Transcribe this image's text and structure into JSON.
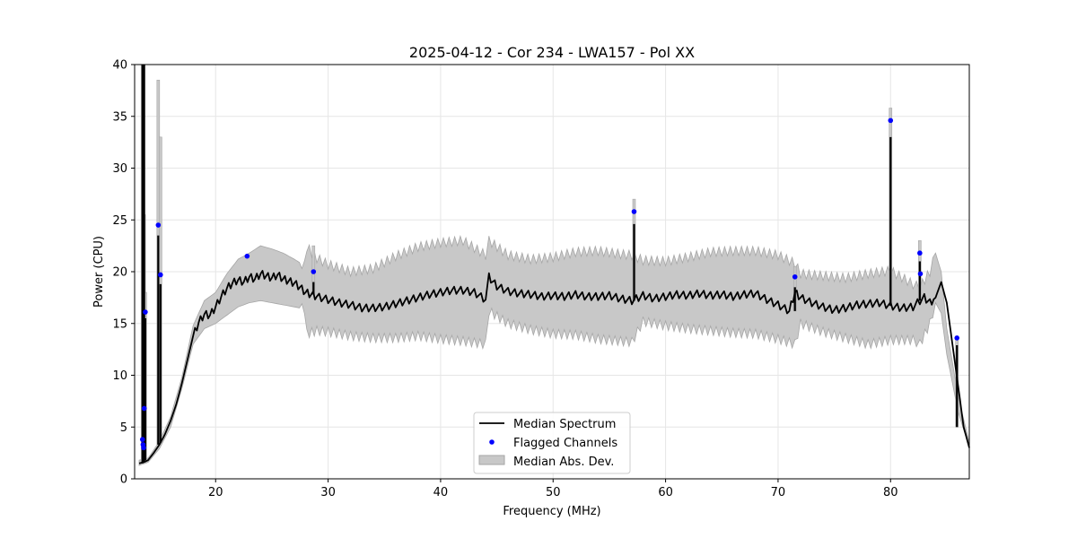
{
  "chart_data": {
    "type": "line",
    "title": "2025-04-12 - Cor 234 - LWA157 - Pol XX",
    "xlabel": "Frequency (MHz)",
    "ylabel": "Power (CPU)",
    "xlim": [
      12.8,
      87.0
    ],
    "ylim": [
      0,
      40
    ],
    "xticks": [
      20,
      30,
      40,
      50,
      60,
      70,
      80
    ],
    "yticks": [
      0,
      5,
      10,
      15,
      20,
      25,
      30,
      35,
      40
    ],
    "grid": true,
    "legend_position": "bottom-center",
    "colors": {
      "median": "#000000",
      "flagged": "#0000ff",
      "band_fill": "#c8c8c8",
      "band_edge": "#a6a6a6",
      "grid": "#e6e6e6"
    },
    "series": [
      {
        "name": "Median Spectrum",
        "kind": "line",
        "x": [
          13.2,
          13.6,
          14.0,
          14.5,
          15.0,
          15.5,
          16.0,
          16.5,
          17.0,
          17.5,
          18.0,
          18.5,
          19.0,
          19.5,
          20.0,
          20.5,
          21.0,
          21.5,
          22.0,
          22.5,
          23.0,
          23.5,
          24.0,
          24.5,
          25.0,
          25.5,
          26.0,
          26.5,
          27.0,
          27.5,
          28.0,
          28.5,
          29.0,
          30.0,
          31.0,
          32.0,
          33.0,
          34.0,
          35.0,
          36.0,
          37.0,
          38.0,
          39.0,
          40.0,
          41.0,
          42.0,
          43.0,
          44.0,
          44.3,
          45.0,
          46.0,
          47.0,
          48.0,
          49.0,
          50.0,
          51.0,
          52.0,
          53.0,
          54.0,
          55.0,
          56.0,
          57.0,
          58.0,
          59.0,
          60.0,
          61.0,
          62.0,
          63.0,
          64.0,
          65.0,
          66.0,
          67.0,
          68.0,
          69.0,
          70.0,
          71.0,
          71.5,
          72.0,
          73.0,
          74.0,
          75.0,
          76.0,
          77.0,
          78.0,
          79.0,
          80.0,
          81.0,
          82.0,
          82.6,
          83.0,
          83.5,
          84.0,
          84.5,
          85.0,
          85.5,
          86.0,
          86.5,
          87.0
        ],
        "y": [
          1.5,
          1.6,
          1.8,
          2.5,
          3.3,
          4.3,
          5.6,
          7.2,
          9.2,
          11.5,
          13.8,
          15.1,
          15.9,
          15.8,
          16.6,
          17.6,
          18.4,
          18.9,
          19.2,
          19.0,
          19.5,
          19.3,
          19.8,
          19.6,
          19.4,
          19.7,
          19.3,
          19.1,
          18.9,
          18.5,
          18.0,
          17.8,
          17.6,
          17.3,
          17.0,
          16.8,
          16.5,
          16.5,
          16.6,
          16.9,
          17.2,
          17.5,
          17.8,
          18.0,
          18.2,
          18.2,
          18.0,
          17.3,
          19.5,
          18.6,
          18.1,
          17.9,
          17.8,
          17.6,
          17.7,
          17.6,
          17.8,
          17.6,
          17.6,
          17.7,
          17.4,
          17.2,
          17.7,
          17.4,
          17.6,
          17.8,
          17.7,
          17.9,
          17.7,
          17.8,
          17.6,
          17.8,
          17.9,
          17.3,
          16.8,
          16.2,
          18.0,
          17.5,
          17.0,
          16.6,
          16.3,
          16.5,
          16.8,
          16.9,
          17.0,
          16.7,
          16.5,
          16.6,
          17.2,
          17.5,
          17.0,
          17.5,
          19.0,
          17.0,
          13.0,
          9.0,
          5.0,
          3.0
        ]
      },
      {
        "name": "Median Abs. Dev.",
        "kind": "band",
        "x": [
          13.2,
          14.0,
          15.0,
          16.0,
          17.0,
          18.0,
          19.0,
          20.0,
          21.0,
          22.0,
          23.0,
          24.0,
          25.0,
          26.0,
          27.0,
          27.9,
          28.1,
          29.0,
          30.0,
          32.0,
          34.0,
          36.0,
          38.0,
          40.0,
          42.0,
          44.0,
          44.3,
          46.0,
          48.0,
          50.0,
          52.0,
          54.0,
          56.0,
          57.0,
          58.0,
          60.0,
          62.0,
          64.0,
          66.0,
          68.0,
          70.0,
          71.5,
          72.0,
          74.0,
          76.0,
          78.0,
          80.0,
          82.0,
          82.6,
          83.5,
          84.0,
          84.5,
          85.0,
          86.0,
          87.0
        ],
        "lower": [
          1.3,
          1.6,
          2.9,
          5.0,
          8.7,
          13.0,
          14.5,
          15.0,
          15.8,
          16.6,
          17.0,
          17.2,
          17.0,
          16.8,
          16.6,
          16.4,
          14.0,
          14.3,
          14.2,
          13.8,
          13.6,
          13.6,
          13.8,
          13.5,
          13.3,
          13.0,
          16.2,
          15.0,
          14.4,
          14.0,
          13.9,
          13.5,
          13.3,
          13.2,
          15.2,
          14.8,
          14.5,
          14.3,
          14.1,
          14.0,
          13.5,
          13.0,
          15.0,
          14.2,
          13.6,
          13.0,
          13.4,
          13.4,
          13.0,
          15.0,
          17.0,
          16.0,
          12.0,
          6.5,
          3.0
        ],
        "upper": [
          1.8,
          2.0,
          3.6,
          6.0,
          9.8,
          14.8,
          17.2,
          18.0,
          19.8,
          21.2,
          21.8,
          22.5,
          22.2,
          21.8,
          21.2,
          20.6,
          22.4,
          21.3,
          20.7,
          20.0,
          20.3,
          21.5,
          22.4,
          22.8,
          23.0,
          21.6,
          23.0,
          21.6,
          21.2,
          21.4,
          21.9,
          22.0,
          21.7,
          21.6,
          21.1,
          21.0,
          21.4,
          21.9,
          22.0,
          22.0,
          21.6,
          20.8,
          19.8,
          19.6,
          19.4,
          19.8,
          20.1,
          18.8,
          18.5,
          20.0,
          21.8,
          20.0,
          14.5,
          8.0,
          3.5
        ]
      },
      {
        "name": "Flagged Channels",
        "kind": "scatter",
        "x": [
          13.5,
          13.55,
          13.6,
          13.65,
          13.75,
          14.9,
          15.1,
          22.8,
          28.7,
          57.2,
          71.5,
          80.0,
          82.6,
          82.65,
          85.9
        ],
        "y": [
          3.8,
          3.3,
          3.0,
          6.8,
          16.1,
          24.5,
          19.7,
          21.5,
          20.0,
          25.8,
          19.5,
          34.6,
          21.8,
          19.8,
          13.6
        ]
      },
      {
        "name": "Spikes",
        "kind": "spikes",
        "x": [
          13.5,
          13.65,
          13.75,
          14.9,
          15.1,
          28.7,
          57.2,
          71.5,
          80.0,
          82.6,
          85.9
        ],
        "base": [
          1.5,
          1.6,
          1.8,
          3.3,
          3.5,
          17.8,
          17.2,
          16.2,
          16.7,
          17.2,
          5.0
        ],
        "top": [
          40.0,
          40.0,
          15.5,
          23.5,
          18.8,
          19.0,
          24.6,
          18.5,
          33.0,
          21.0,
          12.9
        ],
        "band_top": [
          40.0,
          25.5,
          18.0,
          38.5,
          33.0,
          22.5,
          27.0,
          20.5,
          35.8,
          23.0,
          13.8
        ]
      }
    ],
    "legend": [
      {
        "label": "Median Spectrum",
        "kind": "line"
      },
      {
        "label": "Flagged Channels",
        "kind": "scatter"
      },
      {
        "label": "Median Abs. Dev.",
        "kind": "band"
      }
    ]
  }
}
